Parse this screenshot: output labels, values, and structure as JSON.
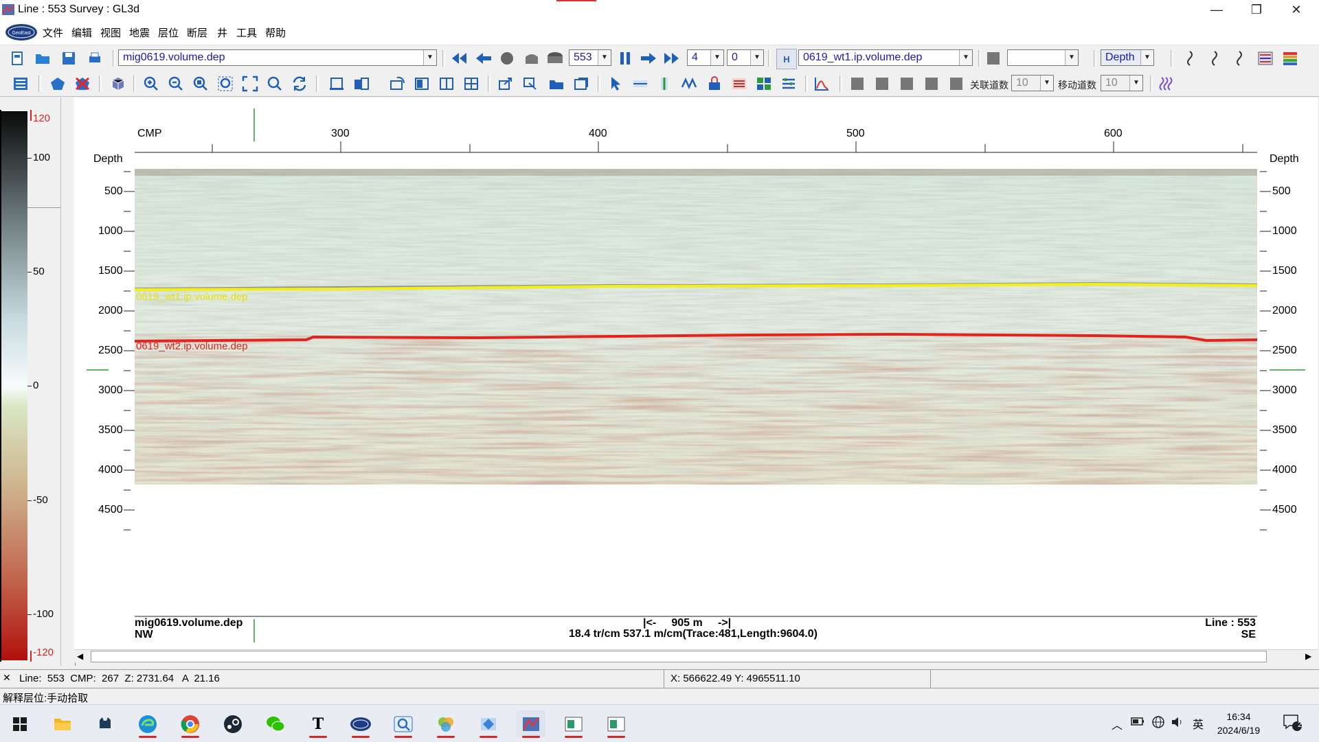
{
  "window": {
    "title": "Line : 553  Survey : GL3d",
    "minimize": "—",
    "restore": "❐",
    "close": "✕"
  },
  "menu": {
    "logo_text": "GeoEast",
    "items": [
      "文件",
      "编辑",
      "视图",
      "地震",
      "层位",
      "断层",
      "井",
      "工具",
      "帮助"
    ]
  },
  "toolbar1": {
    "volume_file": "mig0619.volume.dep",
    "line_number": "553",
    "step": "4",
    "offset": "0",
    "horizon_badge": "H",
    "horizon_file": "0619_wt1.ip.volume.dep",
    "empty_combo": "",
    "domain": "Depth"
  },
  "toolbar2": {
    "assoc_label": "关联道数",
    "assoc_value": "10",
    "move_label": "移动道数",
    "move_value": "10"
  },
  "colorbar": {
    "labels": [
      "120",
      "100",
      "50",
      "0",
      "-50",
      "-100",
      "-120"
    ],
    "colors": {
      "top": "#0a0a0a",
      "mid": "#f8fbfb",
      "bottom": "#b1100c"
    }
  },
  "plot": {
    "cmp_label": "CMP",
    "cmp_ticks": [
      "300",
      "400",
      "500",
      "600"
    ],
    "depth_label": "Depth",
    "depth_ticks": [
      "500",
      "1000",
      "1500",
      "2000",
      "2500",
      "3000",
      "3500",
      "4000",
      "4500"
    ],
    "horizon1": {
      "label": "0619_wt1.ip.volume.dep",
      "color": "#f2ee16"
    },
    "horizon2": {
      "label": "0619_wt2.ip.volume.dep",
      "color": "#e3231d"
    },
    "footer_left_file": "mig0619.volume.dep",
    "footer_left_dir": "NW",
    "footer_scale": "|<-     905 m     ->|",
    "footer_info": "18.4 tr/cm  537.1  m/cm(Trace:481,Length:9604.0)",
    "footer_right_line": "Line : 553",
    "footer_right_dir": "SE"
  },
  "status": {
    "line": "Line:  553  CMP:  267  Z: 2731.64   A  21.16",
    "coords": "X: 566622.49  Y: 4965511.10",
    "mode": "解释层位:手动拾取"
  },
  "taskbar": {
    "ime": "英",
    "time": "16:34",
    "date": "2024/6/19",
    "notifications": "2"
  }
}
